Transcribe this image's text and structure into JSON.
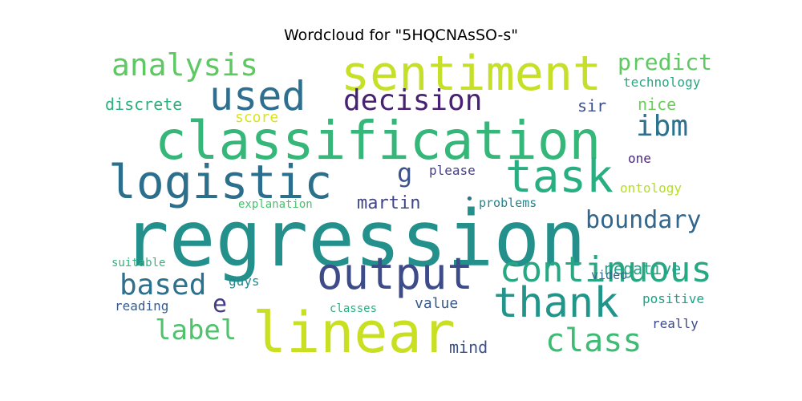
{
  "chart_data": {
    "type": "wordcloud",
    "title": "Wordcloud for \"5HQCNAsSO-s\"",
    "words": [
      {
        "text": "regression",
        "color": "#23908c"
      },
      {
        "text": "classification",
        "color": "#35b779"
      },
      {
        "text": "linear",
        "color": "#c8df22"
      },
      {
        "text": "sentiment",
        "color": "#c6e02a"
      },
      {
        "text": "logistic",
        "color": "#2b6f8d"
      },
      {
        "text": "task",
        "color": "#28ae80"
      },
      {
        "text": "output",
        "color": "#3d4b89"
      },
      {
        "text": "thank",
        "color": "#22958b"
      },
      {
        "text": "used",
        "color": "#2e6e8e"
      },
      {
        "text": "continuous",
        "color": "#27a882"
      },
      {
        "text": "decision",
        "color": "#482173"
      },
      {
        "text": "analysis",
        "color": "#5ec962"
      },
      {
        "text": "based",
        "color": "#2d718e"
      },
      {
        "text": "class",
        "color": "#3dbc74"
      },
      {
        "text": "label",
        "color": "#4ec36b"
      },
      {
        "text": "boundary",
        "color": "#31678e"
      },
      {
        "text": "ibm",
        "color": "#2c728e"
      },
      {
        "text": "predict",
        "color": "#5ec962"
      },
      {
        "text": "g",
        "color": "#3a538b"
      },
      {
        "text": "e",
        "color": "#433d84"
      },
      {
        "text": "martin",
        "color": "#404588"
      },
      {
        "text": "negative",
        "color": "#20a486"
      },
      {
        "text": "discrete",
        "color": "#2bb07f"
      },
      {
        "text": "nice",
        "color": "#6ccd5a"
      },
      {
        "text": "score",
        "color": "#dde318"
      },
      {
        "text": "sir",
        "color": "#3c4f8a"
      },
      {
        "text": "technology",
        "color": "#26a981"
      },
      {
        "text": "mind",
        "color": "#3c508b"
      },
      {
        "text": "please",
        "color": "#433e85"
      },
      {
        "text": "one",
        "color": "#482878"
      },
      {
        "text": "value",
        "color": "#38598c"
      },
      {
        "text": "video",
        "color": "#31688e"
      },
      {
        "text": "positive",
        "color": "#1fa088"
      },
      {
        "text": "ontology",
        "color": "#b5de2b"
      },
      {
        "text": "explanation",
        "color": "#4ac16d"
      },
      {
        "text": "problems",
        "color": "#26828e"
      },
      {
        "text": "guys",
        "color": "#23888e"
      },
      {
        "text": "really",
        "color": "#3e4a89"
      },
      {
        "text": "reading",
        "color": "#365c8d"
      },
      {
        "text": "classes",
        "color": "#29af7f"
      },
      {
        "text": "suitable",
        "color": "#2fb47c"
      },
      {
        "text": "•",
        "color": "#2a768e"
      }
    ]
  }
}
